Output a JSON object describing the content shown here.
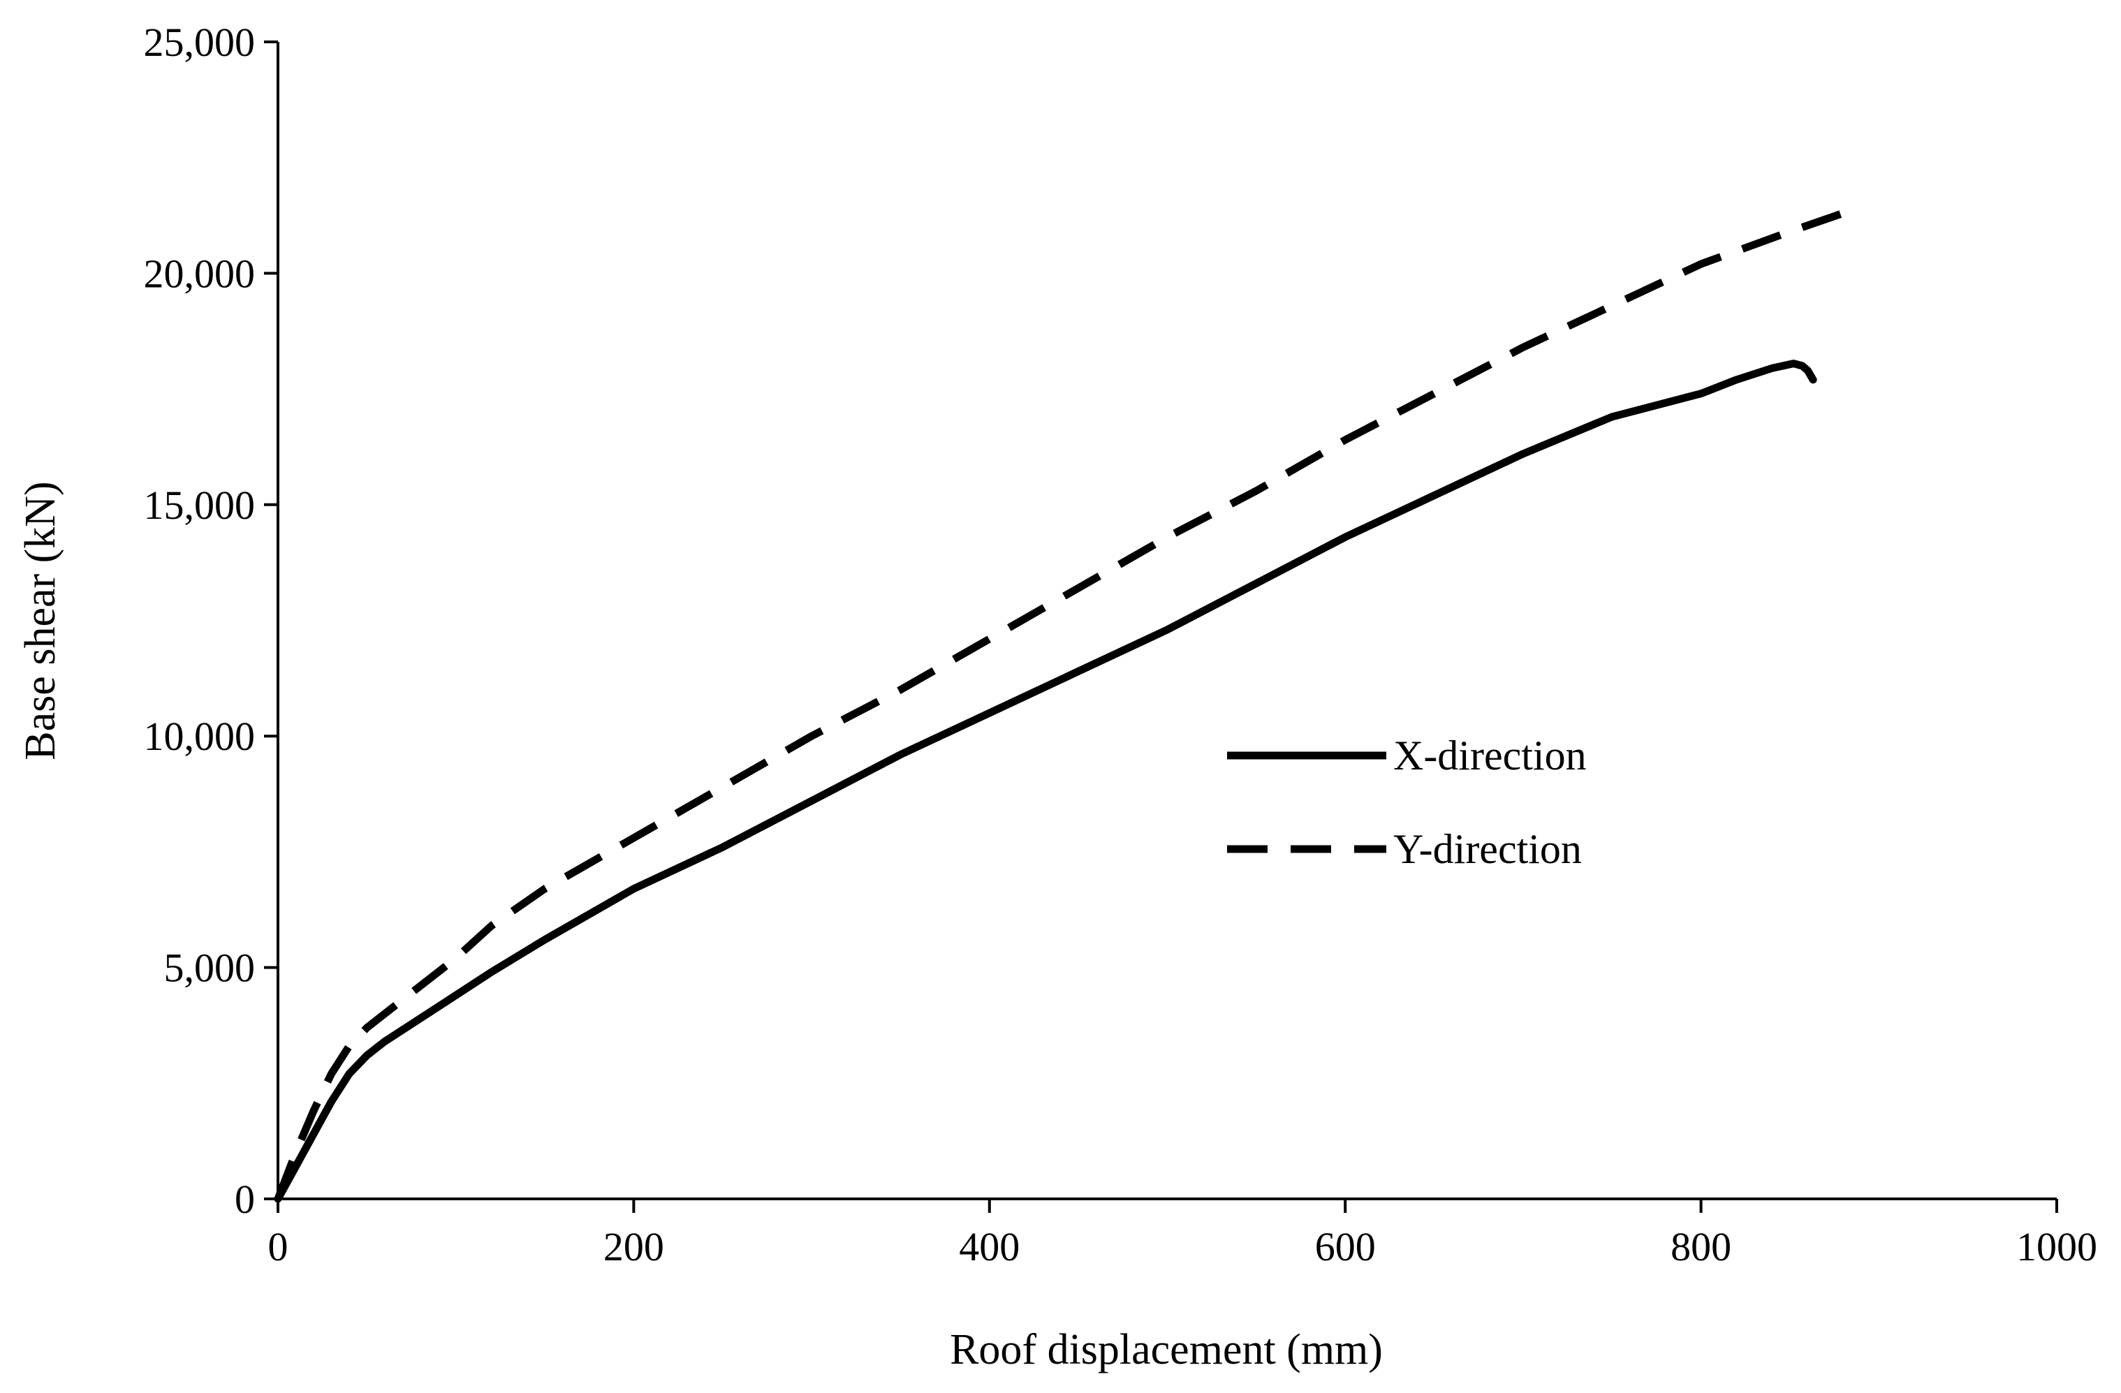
{
  "colors": {
    "background": "#ffffff",
    "ink": "#000000"
  },
  "chart_data": {
    "type": "line",
    "title": "",
    "xlabel": "Roof displacement (mm)",
    "ylabel": "Base shear (kN)",
    "xlim": [
      0,
      1000
    ],
    "ylim": [
      0,
      25000
    ],
    "x_ticks": [
      0,
      200,
      400,
      600,
      800,
      1000
    ],
    "x_tick_labels": [
      "0",
      "200",
      "400",
      "600",
      "800",
      "1000"
    ],
    "y_ticks": [
      0,
      5000,
      10000,
      15000,
      20000,
      25000
    ],
    "y_tick_labels": [
      "0",
      "5,000",
      "10,000",
      "15,000",
      "20,000",
      "25,000"
    ],
    "grid": false,
    "legend_position": "center-right",
    "series": [
      {
        "name": "X-direction",
        "style": "solid",
        "x": [
          0,
          10,
          20,
          30,
          40,
          50,
          60,
          80,
          100,
          120,
          150,
          200,
          250,
          300,
          350,
          400,
          450,
          500,
          550,
          600,
          650,
          700,
          750,
          800,
          820,
          840,
          852,
          857,
          860,
          863
        ],
        "y": [
          0,
          700,
          1400,
          2100,
          2700,
          3100,
          3400,
          3900,
          4400,
          4900,
          5600,
          6700,
          7600,
          8600,
          9600,
          10500,
          11400,
          12300,
          13300,
          14300,
          15200,
          16100,
          16900,
          17400,
          17700,
          17950,
          18050,
          18000,
          17900,
          17700
        ]
      },
      {
        "name": "Y-direction",
        "style": "dashed",
        "x": [
          0,
          10,
          20,
          30,
          40,
          50,
          60,
          80,
          100,
          120,
          150,
          200,
          250,
          300,
          350,
          400,
          450,
          500,
          550,
          600,
          650,
          700,
          750,
          800,
          850,
          880
        ],
        "y": [
          0,
          1000,
          1900,
          2700,
          3300,
          3700,
          4000,
          4600,
          5200,
          5900,
          6700,
          7800,
          8900,
          10000,
          11000,
          12100,
          13200,
          14300,
          15300,
          16400,
          17400,
          18400,
          19300,
          20200,
          20900,
          21300
        ]
      }
    ]
  }
}
